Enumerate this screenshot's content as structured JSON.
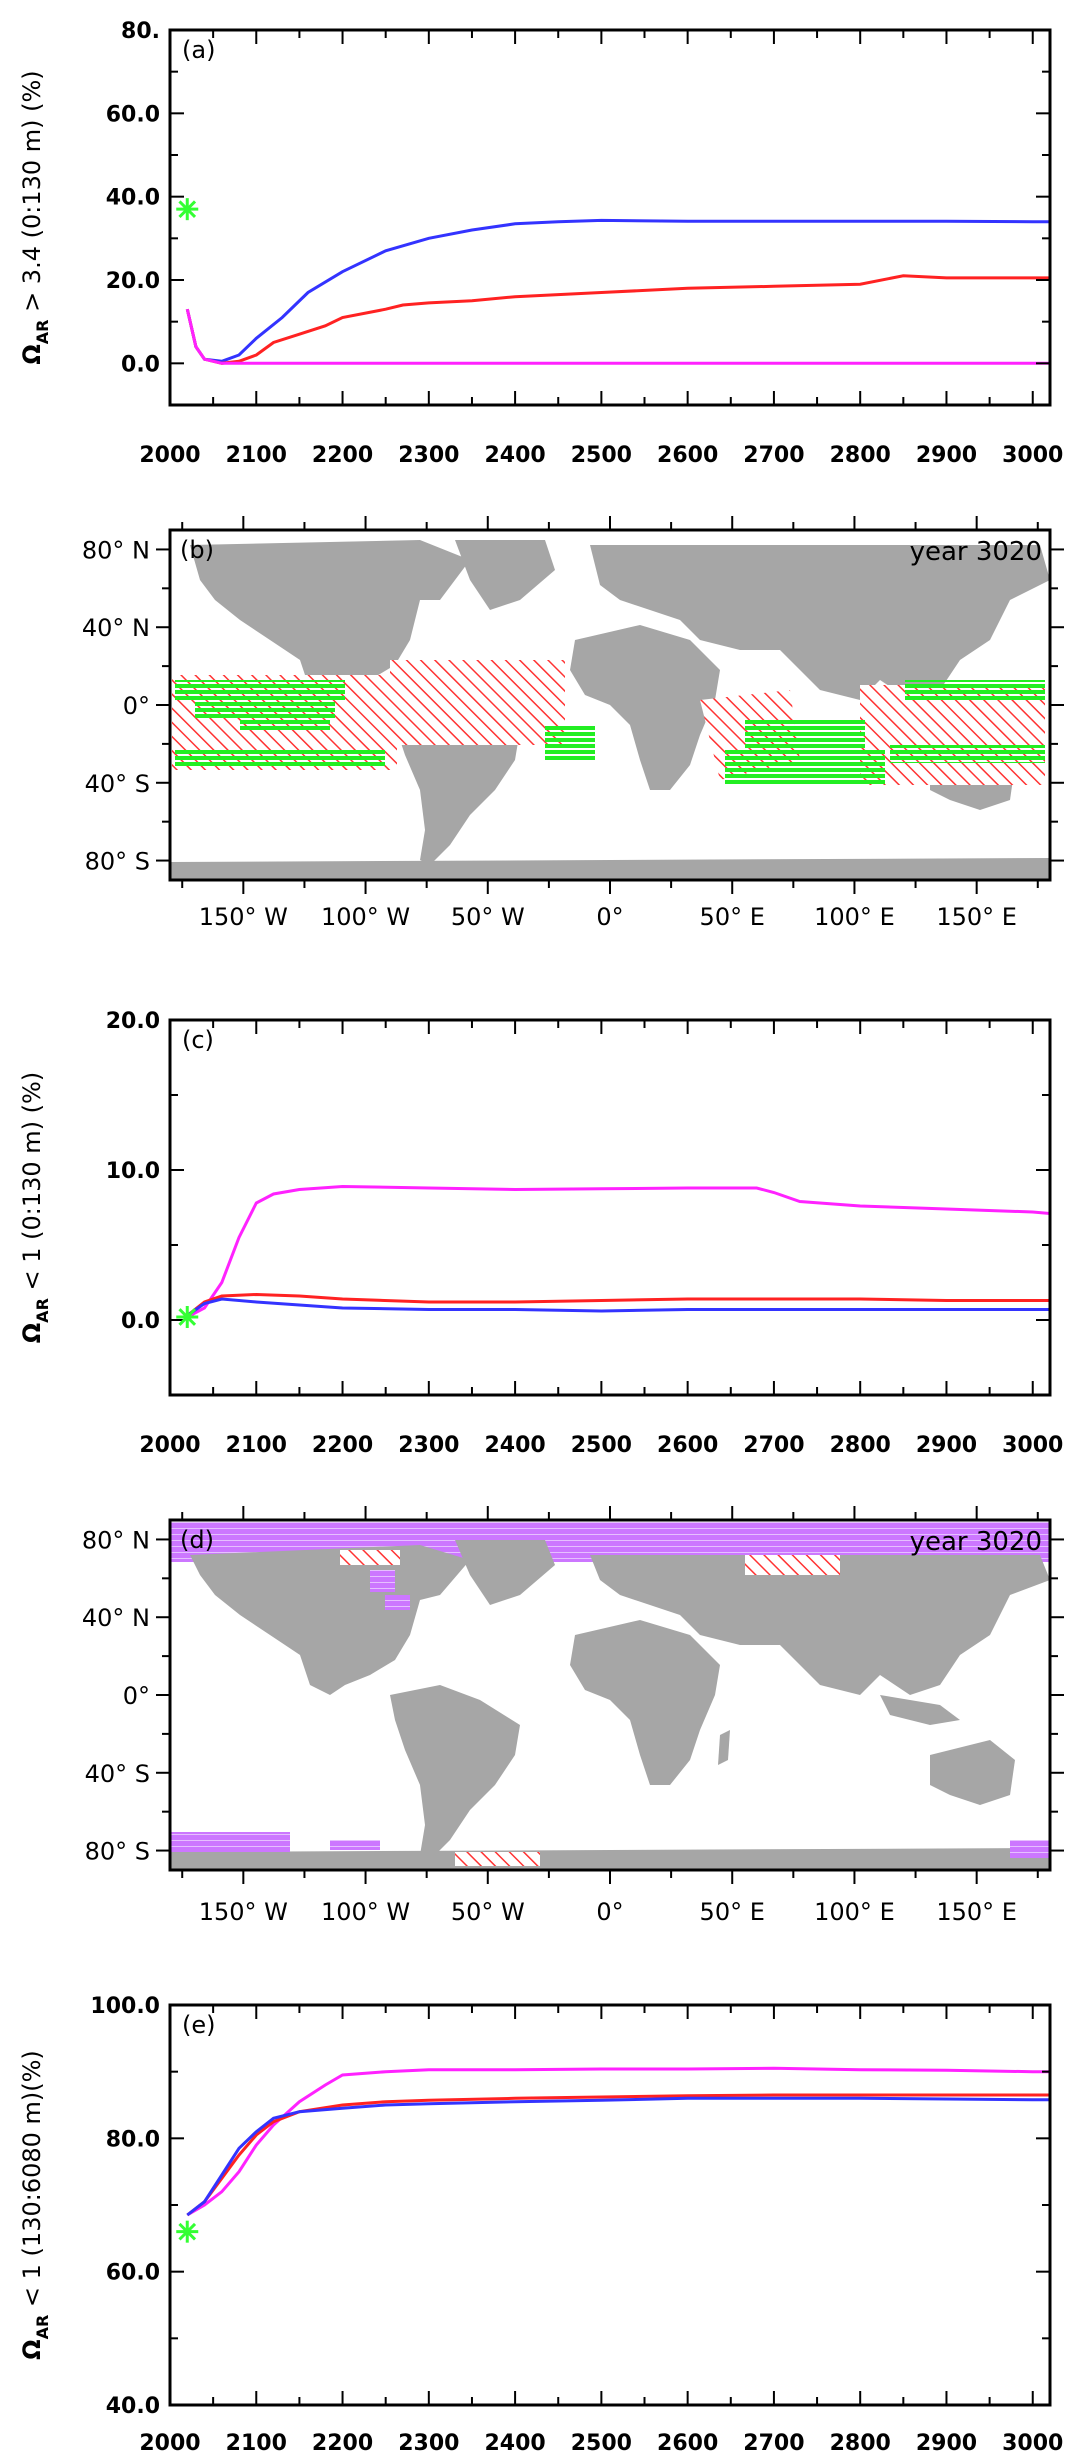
{
  "chart_data": [
    {
      "id": "a",
      "type": "line",
      "panel_label": "(a)",
      "ylabel_main": "Ω",
      "ylabel_sub": "AR",
      "ylabel_rest": " > 3.4  (0:130 m)  (%)",
      "xlim": [
        2000,
        3020
      ],
      "ylim": [
        -10,
        80
      ],
      "xticks": [
        2000,
        2100,
        2200,
        2300,
        2400,
        2500,
        2600,
        2700,
        2800,
        2900,
        3000
      ],
      "xtick_labels": [
        "2000",
        "2100",
        "2200",
        "2300",
        "2400",
        "2500",
        "2600",
        "2700",
        "2800",
        "2900",
        "3000"
      ],
      "yticks": [
        0,
        20,
        40,
        60,
        80
      ],
      "ytick_labels": [
        "0.0",
        "20.0",
        "40.0",
        "60.0",
        "80."
      ],
      "marker": {
        "x": 2020,
        "y": 37,
        "color": "#33ff33"
      },
      "series": [
        {
          "color": "#3333ff",
          "x": [
            2020,
            2030,
            2040,
            2060,
            2080,
            2100,
            2130,
            2160,
            2200,
            2250,
            2300,
            2350,
            2400,
            2450,
            2500,
            2600,
            2700,
            2800,
            2900,
            3000,
            3020
          ],
          "y": [
            13,
            4,
            1,
            0.5,
            2,
            6,
            11,
            17,
            22,
            27,
            30,
            32,
            33.5,
            34,
            34.3,
            34.1,
            34.1,
            34.1,
            34.1,
            34,
            34
          ]
        },
        {
          "color": "#ff2222",
          "x": [
            2020,
            2030,
            2040,
            2060,
            2080,
            2100,
            2120,
            2150,
            2180,
            2200,
            2250,
            2270,
            2300,
            2350,
            2400,
            2450,
            2500,
            2600,
            2700,
            2800,
            2850,
            2900,
            3000,
            3020
          ],
          "y": [
            13,
            4,
            1,
            0,
            0.5,
            2,
            5,
            7,
            9,
            11,
            13,
            14,
            14.5,
            15,
            16,
            16.5,
            17,
            18,
            18.5,
            19,
            21,
            20.5,
            20.5,
            20.5
          ]
        },
        {
          "color": "#ff22ff",
          "x": [
            2020,
            2030,
            2040,
            2060,
            2100,
            2200,
            2400,
            2600,
            2800,
            3020
          ],
          "y": [
            13,
            4,
            1,
            0,
            0,
            0,
            0,
            0,
            0,
            0
          ]
        }
      ]
    },
    {
      "id": "c",
      "type": "line",
      "panel_label": "(c)",
      "ylabel_main": "Ω",
      "ylabel_sub": "AR",
      "ylabel_rest": " < 1  (0:130 m)  (%)",
      "xlim": [
        2000,
        3020
      ],
      "ylim": [
        -5,
        20
      ],
      "xticks": [
        2000,
        2100,
        2200,
        2300,
        2400,
        2500,
        2600,
        2700,
        2800,
        2900,
        3000
      ],
      "xtick_labels": [
        "2000",
        "2100",
        "2200",
        "2300",
        "2400",
        "2500",
        "2600",
        "2700",
        "2800",
        "2900",
        "3000"
      ],
      "yticks": [
        0,
        10,
        20
      ],
      "ytick_labels": [
        "0.0",
        "10.0",
        "20.0"
      ],
      "marker": {
        "x": 2020,
        "y": 0.2,
        "color": "#33ff33"
      },
      "series": [
        {
          "color": "#ff22ff",
          "x": [
            2020,
            2040,
            2060,
            2080,
            2100,
            2120,
            2150,
            2200,
            2300,
            2400,
            2500,
            2600,
            2680,
            2700,
            2730,
            2800,
            2900,
            3000,
            3020
          ],
          "y": [
            0.2,
            0.8,
            2.5,
            5.5,
            7.8,
            8.4,
            8.7,
            8.9,
            8.8,
            8.7,
            8.75,
            8.8,
            8.8,
            8.5,
            7.9,
            7.6,
            7.4,
            7.2,
            7.1
          ]
        },
        {
          "color": "#ff2222",
          "x": [
            2020,
            2040,
            2060,
            2100,
            2150,
            2200,
            2300,
            2400,
            2500,
            2600,
            2700,
            2800,
            2900,
            3000,
            3020
          ],
          "y": [
            0.3,
            1.2,
            1.6,
            1.7,
            1.6,
            1.4,
            1.2,
            1.2,
            1.3,
            1.4,
            1.4,
            1.4,
            1.3,
            1.3,
            1.3
          ]
        },
        {
          "color": "#3333ff",
          "x": [
            2020,
            2040,
            2060,
            2100,
            2150,
            2200,
            2300,
            2400,
            2500,
            2600,
            2700,
            2800,
            2900,
            3000,
            3020
          ],
          "y": [
            0.3,
            1.1,
            1.4,
            1.2,
            1.0,
            0.8,
            0.7,
            0.7,
            0.6,
            0.7,
            0.7,
            0.7,
            0.7,
            0.7,
            0.7
          ]
        }
      ]
    },
    {
      "id": "e",
      "type": "line",
      "panel_label": "(e)",
      "ylabel_main": "Ω",
      "ylabel_sub": "AR",
      "ylabel_rest": " < 1  (130:6080 m)(%)",
      "xlim": [
        2000,
        3020
      ],
      "ylim": [
        40,
        100
      ],
      "xticks": [
        2000,
        2100,
        2200,
        2300,
        2400,
        2500,
        2600,
        2700,
        2800,
        2900,
        3000
      ],
      "xtick_labels": [
        "2000",
        "2100",
        "2200",
        "2300",
        "2400",
        "2500",
        "2600",
        "2700",
        "2800",
        "2900",
        "3000"
      ],
      "yticks": [
        40,
        60,
        80,
        100
      ],
      "ytick_labels": [
        "40.0",
        "60.0",
        "80.0",
        "100.0"
      ],
      "marker": {
        "x": 2020,
        "y": 66,
        "color": "#33ff33"
      },
      "series": [
        {
          "color": "#ff22ff",
          "x": [
            2020,
            2040,
            2060,
            2080,
            2100,
            2120,
            2150,
            2180,
            2200,
            2250,
            2300,
            2400,
            2500,
            2600,
            2700,
            2800,
            2900,
            3000,
            3020
          ],
          "y": [
            68.5,
            70,
            72,
            75,
            79,
            82,
            85.5,
            88,
            89.5,
            90,
            90.3,
            90.3,
            90.4,
            90.4,
            90.5,
            90.3,
            90.2,
            90,
            90
          ]
        },
        {
          "color": "#ff2222",
          "x": [
            2020,
            2040,
            2060,
            2080,
            2100,
            2120,
            2150,
            2200,
            2250,
            2300,
            2400,
            2500,
            2600,
            2700,
            2800,
            2900,
            3000,
            3020
          ],
          "y": [
            68.5,
            70.5,
            74,
            77.5,
            80.5,
            82.5,
            84,
            85,
            85.5,
            85.7,
            86,
            86.2,
            86.4,
            86.5,
            86.5,
            86.5,
            86.5,
            86.5
          ]
        },
        {
          "color": "#3333ff",
          "x": [
            2020,
            2040,
            2060,
            2080,
            2100,
            2120,
            2150,
            2200,
            2250,
            2300,
            2400,
            2500,
            2600,
            2700,
            2800,
            2900,
            3000,
            3020
          ],
          "y": [
            68.5,
            70.5,
            74.5,
            78.5,
            81,
            83,
            84,
            84.5,
            85,
            85.2,
            85.5,
            85.7,
            86,
            86,
            86,
            85.9,
            85.8,
            85.8
          ]
        }
      ]
    }
  ],
  "maps": [
    {
      "id": "b",
      "panel_label": "(b)",
      "year_label": "year 3020",
      "lat_labels": [
        "80° N",
        "40° N",
        "0°",
        "40° S",
        "80° S"
      ],
      "lat_values": [
        80,
        40,
        0,
        -40,
        -80
      ],
      "lon_labels": [
        "150° W",
        "100° W",
        "50° W",
        "0°",
        "50° E",
        "100° E",
        "150° E"
      ],
      "lon_values": [
        -150,
        -100,
        -50,
        0,
        50,
        100,
        150
      ],
      "land_color": "#a6a6a6",
      "hatch_color": "#ff3333",
      "fill_color": "#22ee22"
    },
    {
      "id": "d",
      "panel_label": "(d)",
      "year_label": "year 3020",
      "lat_labels": [
        "80° N",
        "40° N",
        "0°",
        "40° S",
        "80° S"
      ],
      "lat_values": [
        80,
        40,
        0,
        -40,
        -80
      ],
      "lon_labels": [
        "150° W",
        "100° W",
        "50° W",
        "0°",
        "50° E",
        "100° E",
        "150° E"
      ],
      "lon_values": [
        -150,
        -100,
        -50,
        0,
        50,
        100,
        150
      ],
      "land_color": "#a6a6a6",
      "hatch_color": "#ff3333",
      "fill_color": "#cc77ff"
    }
  ]
}
